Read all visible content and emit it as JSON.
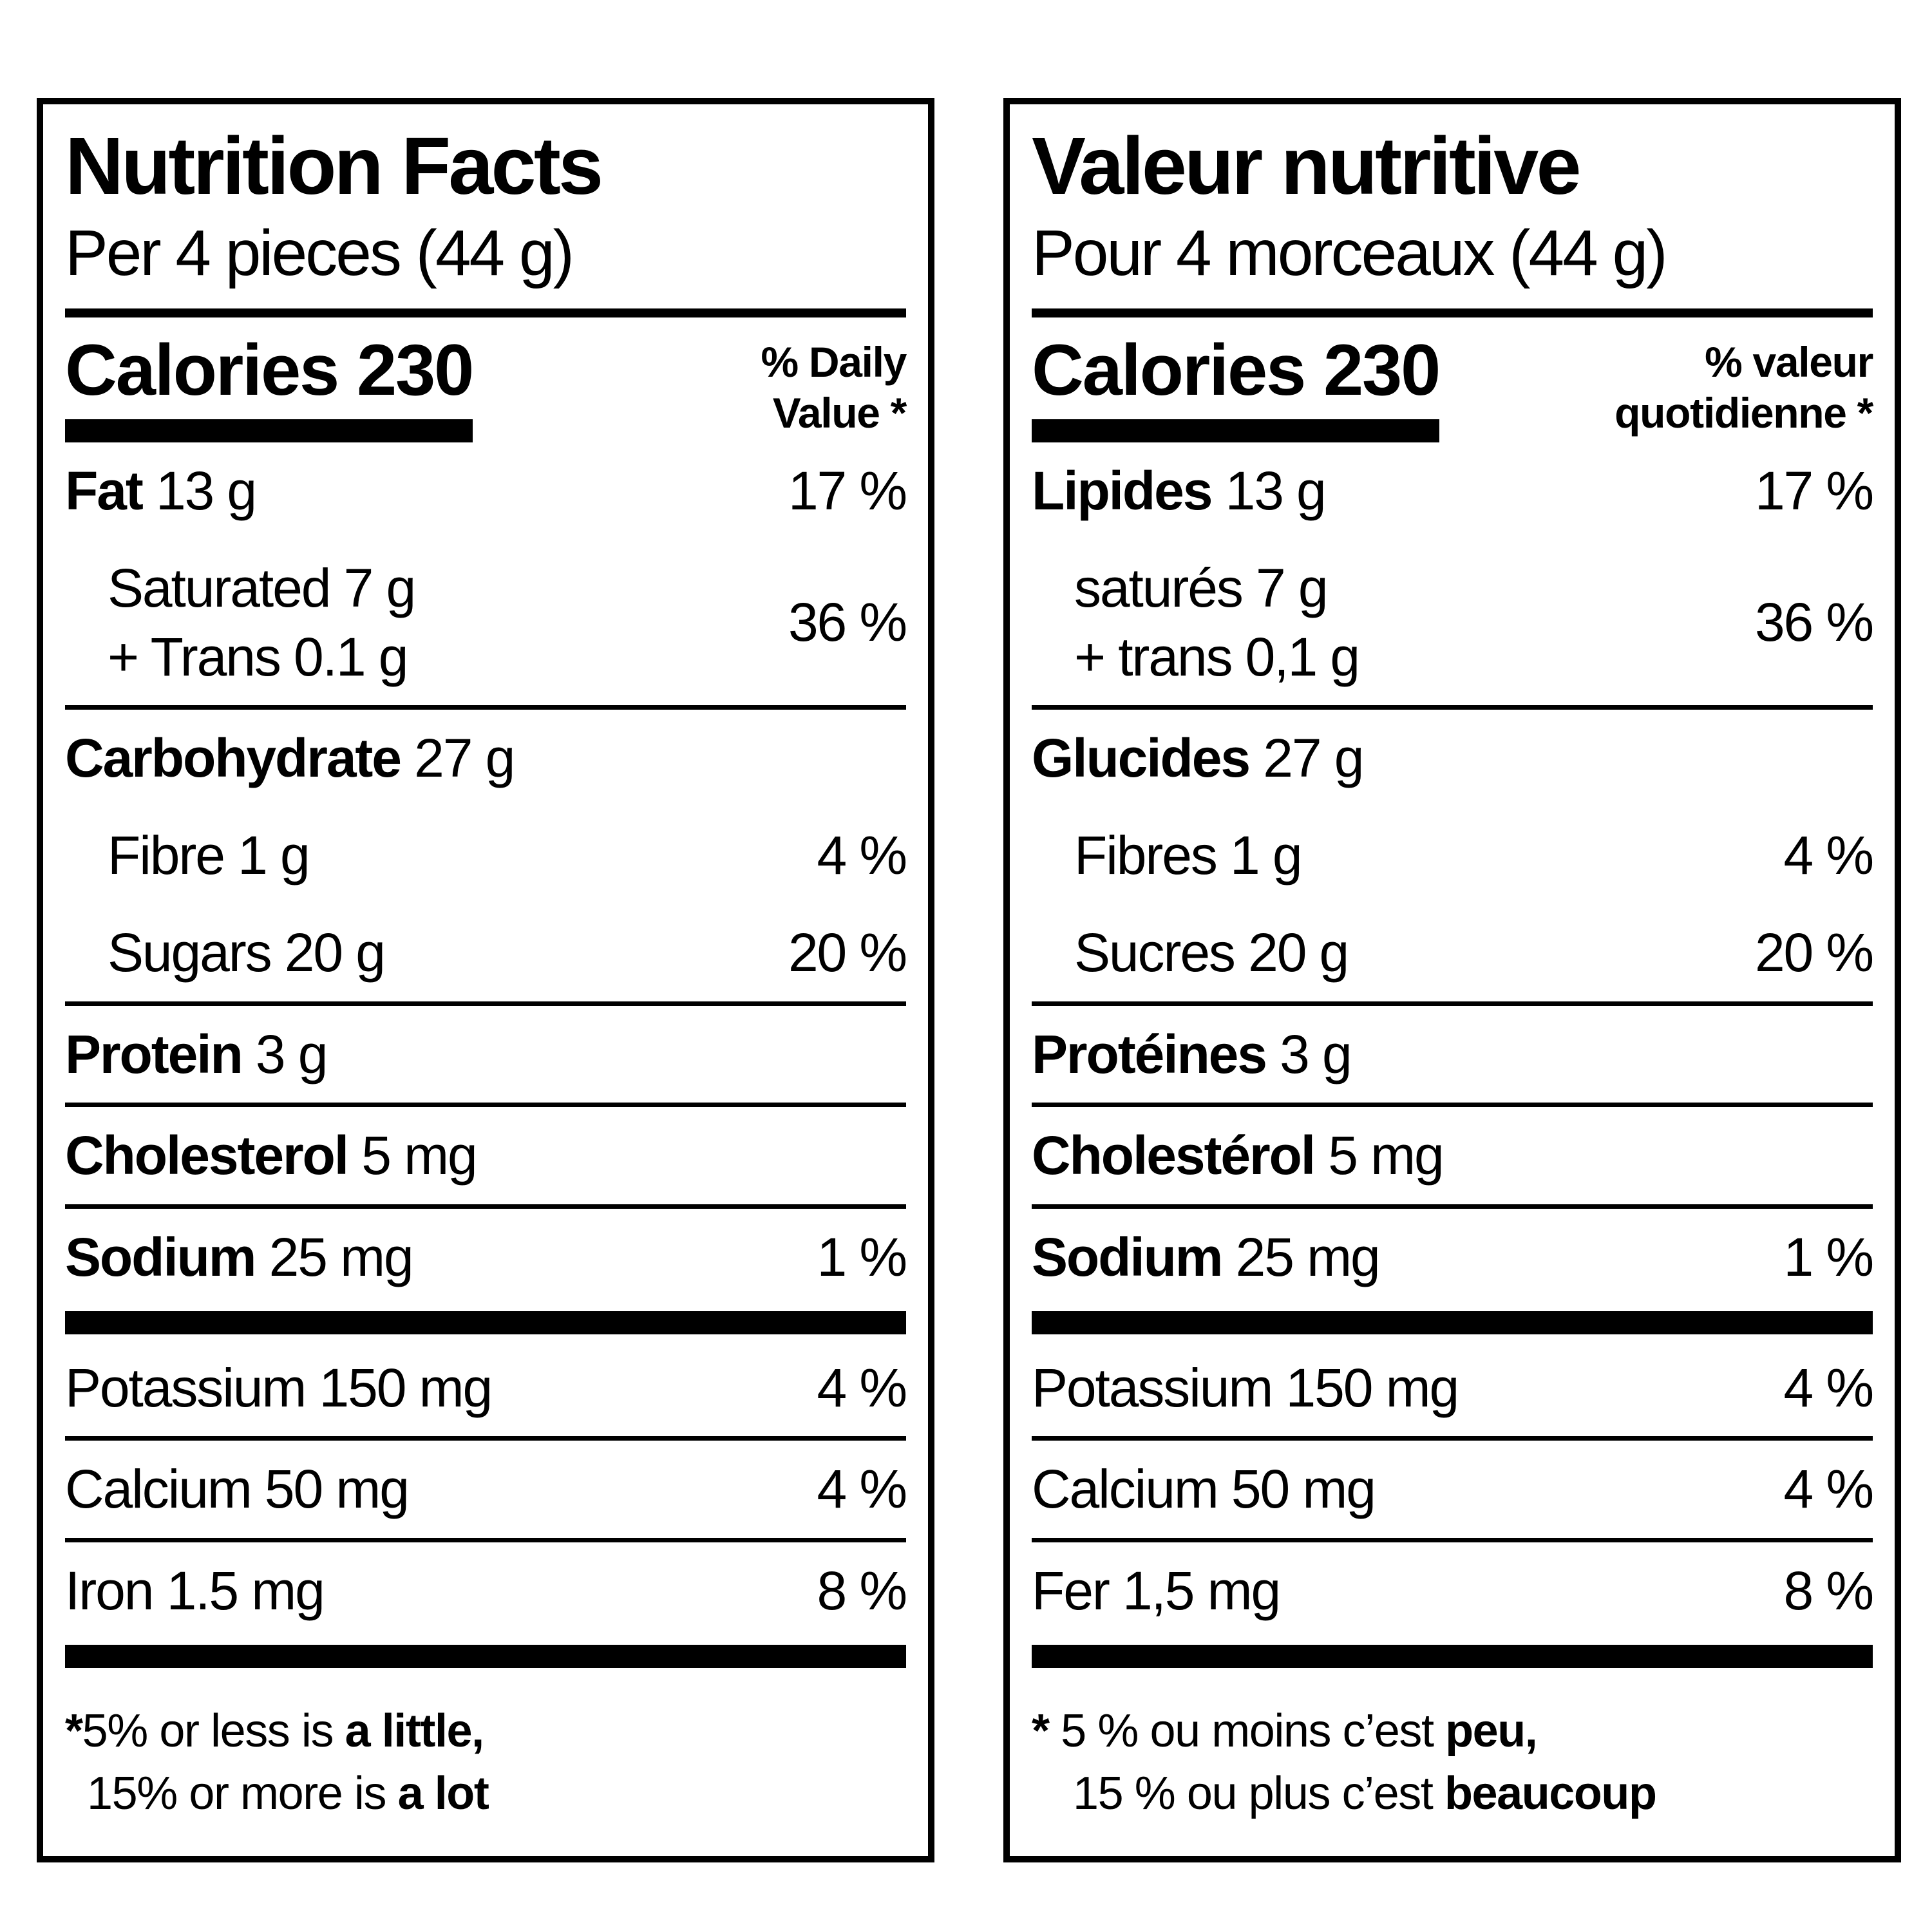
{
  "page": {
    "background": "#ffffff",
    "text_color": "#000000"
  },
  "en": {
    "title": "Nutrition Facts",
    "serving": "Per 4 pieces (44 g)",
    "calories": "Calories 230",
    "dv_line1": "% Daily",
    "dv_line2": "Value *",
    "rows": {
      "fat": {
        "bold": "Fat",
        "rest": " 13 g",
        "value": "17 %"
      },
      "sat": {
        "line1": "Saturated 7 g",
        "line2": "+ Trans 0.1 g",
        "value": "36 %"
      },
      "carb": {
        "bold": "Carbohydrate",
        "rest": " 27 g"
      },
      "fibre": {
        "text": "Fibre 1 g",
        "value": "4 %"
      },
      "sugars": {
        "text": "Sugars 20 g",
        "value": "20 %"
      },
      "protein": {
        "bold": "Protein",
        "rest": " 3 g"
      },
      "cholesterol": {
        "bold": "Cholesterol",
        "rest": " 5 mg"
      },
      "sodium": {
        "bold": "Sodium",
        "rest": " 25 mg",
        "value": "1 %"
      },
      "potassium": {
        "text": "Potassium 150 mg",
        "value": "4 %"
      },
      "calcium": {
        "text": "Calcium 50 mg",
        "value": "4 %"
      },
      "iron": {
        "text": "Iron 1.5 mg",
        "value": "8 %"
      }
    },
    "footnote": {
      "asterisk": "*",
      "line1_pre": "5% or less is ",
      "line1_bold": "a little,",
      "line2_pre": "15% or more is ",
      "line2_bold": "a lot"
    }
  },
  "fr": {
    "title": "Valeur nutritive",
    "serving": "Pour 4 morceaux (44 g)",
    "calories": "Calories 230",
    "dv_line1": "% valeur",
    "dv_line2": "quotidienne *",
    "rows": {
      "fat": {
        "bold": "Lipides",
        "rest": " 13 g",
        "value": "17 %"
      },
      "sat": {
        "line1": "saturés 7 g",
        "line2": "+ trans 0,1 g",
        "value": "36 %"
      },
      "carb": {
        "bold": "Glucides",
        "rest": " 27 g"
      },
      "fibre": {
        "text": "Fibres 1 g",
        "value": "4 %"
      },
      "sugars": {
        "text": "Sucres 20 g",
        "value": "20 %"
      },
      "protein": {
        "bold": "Protéines",
        "rest": " 3 g"
      },
      "cholesterol": {
        "bold": "Cholestérol",
        "rest": " 5 mg"
      },
      "sodium": {
        "bold": "Sodium",
        "rest": " 25 mg",
        "value": "1 %"
      },
      "potassium": {
        "text": "Potassium 150 mg",
        "value": "4 %"
      },
      "calcium": {
        "text": "Calcium 50 mg",
        "value": "4 %"
      },
      "iron": {
        "text": "Fer 1,5 mg",
        "value": "8 %"
      }
    },
    "footnote": {
      "asterisk": "*",
      "line1_pre": " 5 % ou moins c’est ",
      "line1_bold": "peu,",
      "line2_pre": "15 % ou plus c’est ",
      "line2_bold": "beaucoup"
    }
  }
}
